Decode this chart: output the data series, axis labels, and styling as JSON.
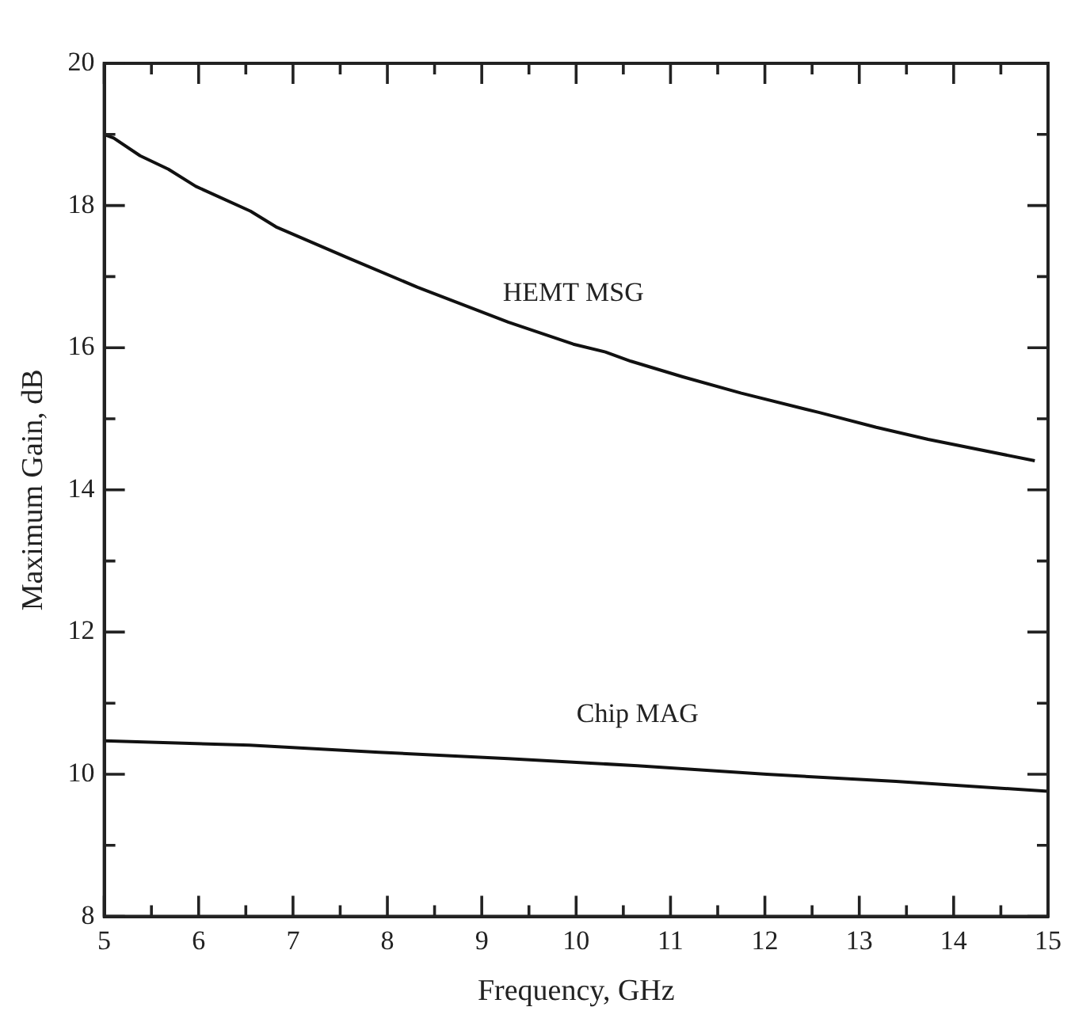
{
  "chart_data": {
    "type": "line",
    "xlabel": "Frequency, GHz",
    "ylabel": "Maximum Gain, dB",
    "xlim": [
      5,
      15
    ],
    "ylim": [
      8,
      20
    ],
    "xticks": [
      5,
      {
        "value": 5.5,
        "label": null
      },
      6,
      {
        "value": 6.5,
        "label": null
      },
      7,
      {
        "value": 7.5,
        "label": null
      },
      8,
      {
        "value": 8.5,
        "label": null
      },
      9,
      {
        "value": 9.5,
        "label": null
      },
      10,
      {
        "value": 10.5,
        "label": null
      },
      11,
      {
        "value": 11.5,
        "label": null
      },
      12,
      {
        "value": 12.5,
        "label": null
      },
      13,
      {
        "value": 13.5,
        "label": null
      },
      14,
      {
        "value": 14.5,
        "label": null
      },
      15
    ],
    "yticks": [
      8,
      {
        "value": 9,
        "label": null
      },
      10,
      {
        "value": 11,
        "label": null
      },
      12,
      {
        "value": 13,
        "label": null
      },
      14,
      {
        "value": 15,
        "label": null
      },
      16,
      {
        "value": 17,
        "label": null
      },
      18,
      {
        "value": 19,
        "label": null
      },
      20
    ],
    "grid": false,
    "legend": false,
    "series": [
      {
        "name": "HEMT MSG",
        "color": "#111111",
        "x": [
          5,
          5.1,
          5.38,
          5.68,
          5.97,
          6.55,
          6.82,
          7.57,
          8.32,
          9.28,
          9.97,
          10.31,
          10.58,
          11.13,
          11.75,
          12.57,
          13.18,
          13.73,
          14.86
        ],
        "values": [
          19.0,
          18.95,
          18.7,
          18.51,
          18.27,
          17.92,
          17.7,
          17.27,
          16.85,
          16.36,
          16.05,
          15.94,
          15.81,
          15.59,
          15.36,
          15.09,
          14.88,
          14.71,
          14.41
        ]
      },
      {
        "name": "Chip MAG",
        "color": "#111111",
        "x": [
          5,
          6.54,
          7.91,
          9.28,
          10.65,
          12.02,
          13.39,
          15
        ],
        "values": [
          10.47,
          10.41,
          10.31,
          10.22,
          10.12,
          10.0,
          9.9,
          9.76
        ]
      }
    ]
  }
}
